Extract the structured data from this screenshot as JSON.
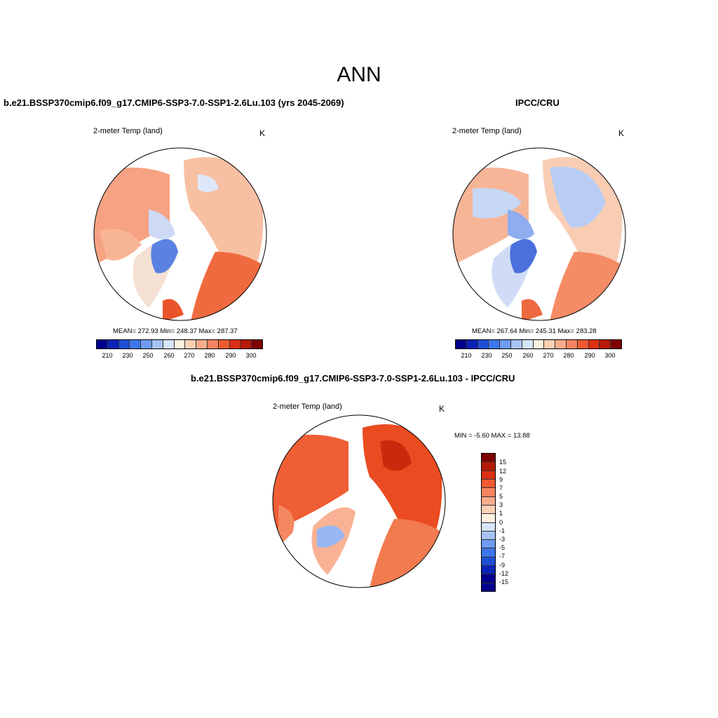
{
  "title": "ANN",
  "panels": [
    {
      "id": "model",
      "header": "b.e21.BSSP370cmip6.f09_g17.CMIP6-SSP3-7.0-SSP1-2.6Lu.103 (yrs 2045-2069)",
      "variable": "2-meter Temp (land)",
      "unit": "K",
      "stats": "MEAN= 272.93   Min= 248.37   Max= 287.37",
      "colorbar_ticks": [
        "210",
        "230",
        "250",
        "260",
        "270",
        "280",
        "290",
        "300"
      ]
    },
    {
      "id": "obs",
      "header": "IPCC/CRU",
      "variable": "2-meter Temp (land)",
      "unit": "K",
      "stats": "MEAN= 267.64   Min= 245.31   Max= 283.28",
      "colorbar_ticks": [
        "210",
        "230",
        "250",
        "260",
        "270",
        "280",
        "290",
        "300"
      ]
    },
    {
      "id": "diff",
      "header": "b.e21.BSSP370cmip6.f09_g17.CMIP6-SSP3-7.0-SSP1-2.6Lu.103 - IPCC/CRU",
      "variable": "2-meter Temp (land)",
      "unit": "K",
      "stats": "MIN =  -5.60 MAX =  13.88",
      "colorbar_ticks": [
        "15",
        "12",
        "9",
        "7",
        "5",
        "3",
        "1",
        "0",
        "-1",
        "-3",
        "-5",
        "-7",
        "-9",
        "-12",
        "-15"
      ]
    }
  ],
  "colors": {
    "abs_scale": [
      "#00008b",
      "#0b23b8",
      "#1c4fd6",
      "#3f75ea",
      "#6f9bf2",
      "#a6c3f6",
      "#d6e5fb",
      "#fff1e0",
      "#fcd0b2",
      "#f9ac8b",
      "#f6845f",
      "#ef5a32",
      "#dc3014",
      "#b51a06",
      "#7f0000"
    ],
    "diff_scale": [
      "#7f0000",
      "#b51a06",
      "#dc3014",
      "#ef5a32",
      "#f6845f",
      "#f9ac8b",
      "#fcd0b2",
      "#fff1e0",
      "#d6e5fb",
      "#a6c3f6",
      "#6f9bf2",
      "#3f75ea",
      "#1c4fd6",
      "#0b23b8",
      "#00008b"
    ]
  }
}
